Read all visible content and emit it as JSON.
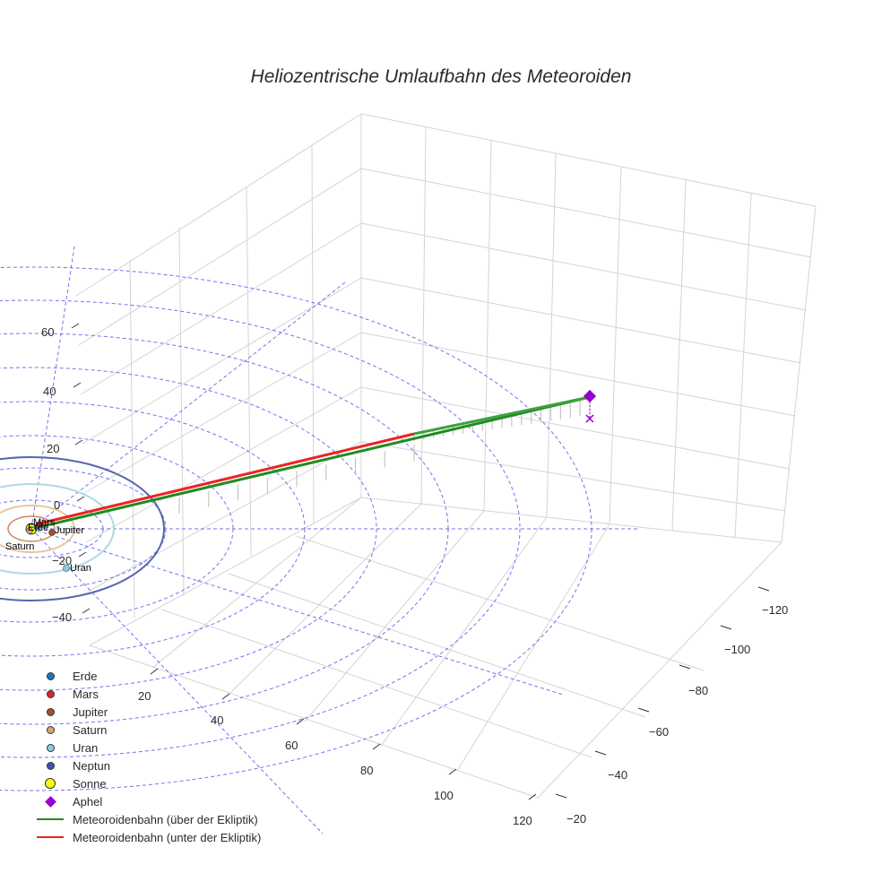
{
  "title": "Heliozentrische Umlaufbahn des Meteoroiden",
  "legend": [
    {
      "label": "Erde",
      "kind": "dot",
      "color": "#1f77b4"
    },
    {
      "label": "Mars",
      "kind": "dot",
      "color": "#d62728"
    },
    {
      "label": "Jupiter",
      "kind": "dot",
      "color": "#a0522d"
    },
    {
      "label": "Saturn",
      "kind": "dot",
      "color": "#d2a679"
    },
    {
      "label": "Uran",
      "kind": "dot",
      "color": "#87ceeb"
    },
    {
      "label": "Neptun",
      "kind": "dot",
      "color": "#3f51b5"
    },
    {
      "label": "Sonne",
      "kind": "bigdot",
      "color": "#ffff00"
    },
    {
      "label": "Aphel",
      "kind": "diamond",
      "color": "#9400d3"
    },
    {
      "label": "Meteoroidenbahn (über der Ekliptik)",
      "kind": "line",
      "color": "#1e8c1e"
    },
    {
      "label": "Meteoroidenbahn (unter der Ekliptik)",
      "kind": "line",
      "color": "#ee2222"
    }
  ],
  "chart_data": {
    "type": "scatter3d",
    "title": "Heliozentrische Umlaufbahn des Meteoroiden",
    "axes": {
      "x_ticks": [
        "20",
        "40",
        "60",
        "80",
        "100",
        "120"
      ],
      "y_ticks": [
        "−20",
        "−40",
        "−60",
        "−80",
        "−100",
        "−120"
      ],
      "z_ticks": [
        "60",
        "40",
        "20",
        "0",
        "−20",
        "−40"
      ]
    },
    "planets": [
      {
        "name": "Erde",
        "color": "#1f77b4"
      },
      {
        "name": "Mars",
        "color": "#d62728"
      },
      {
        "name": "Jupiter",
        "color": "#a0522d"
      },
      {
        "name": "Saturn",
        "color": "#d2a679"
      },
      {
        "name": "Uran",
        "color": "#87ceeb"
      },
      {
        "name": "Neptun",
        "color": "#3f51b5"
      }
    ],
    "sun": {
      "name": "Sonne",
      "color": "#ffff00"
    },
    "aphelion": {
      "name": "Aphel",
      "color": "#9400d3"
    },
    "series": [
      {
        "name": "Meteoroidenbahn (über der Ekliptik)",
        "color": "#1e8c1e"
      },
      {
        "name": "Meteoroidenbahn (unter der Ekliptik)",
        "color": "#ee2222"
      }
    ],
    "grid": true,
    "legend_position": "bottom-left"
  }
}
